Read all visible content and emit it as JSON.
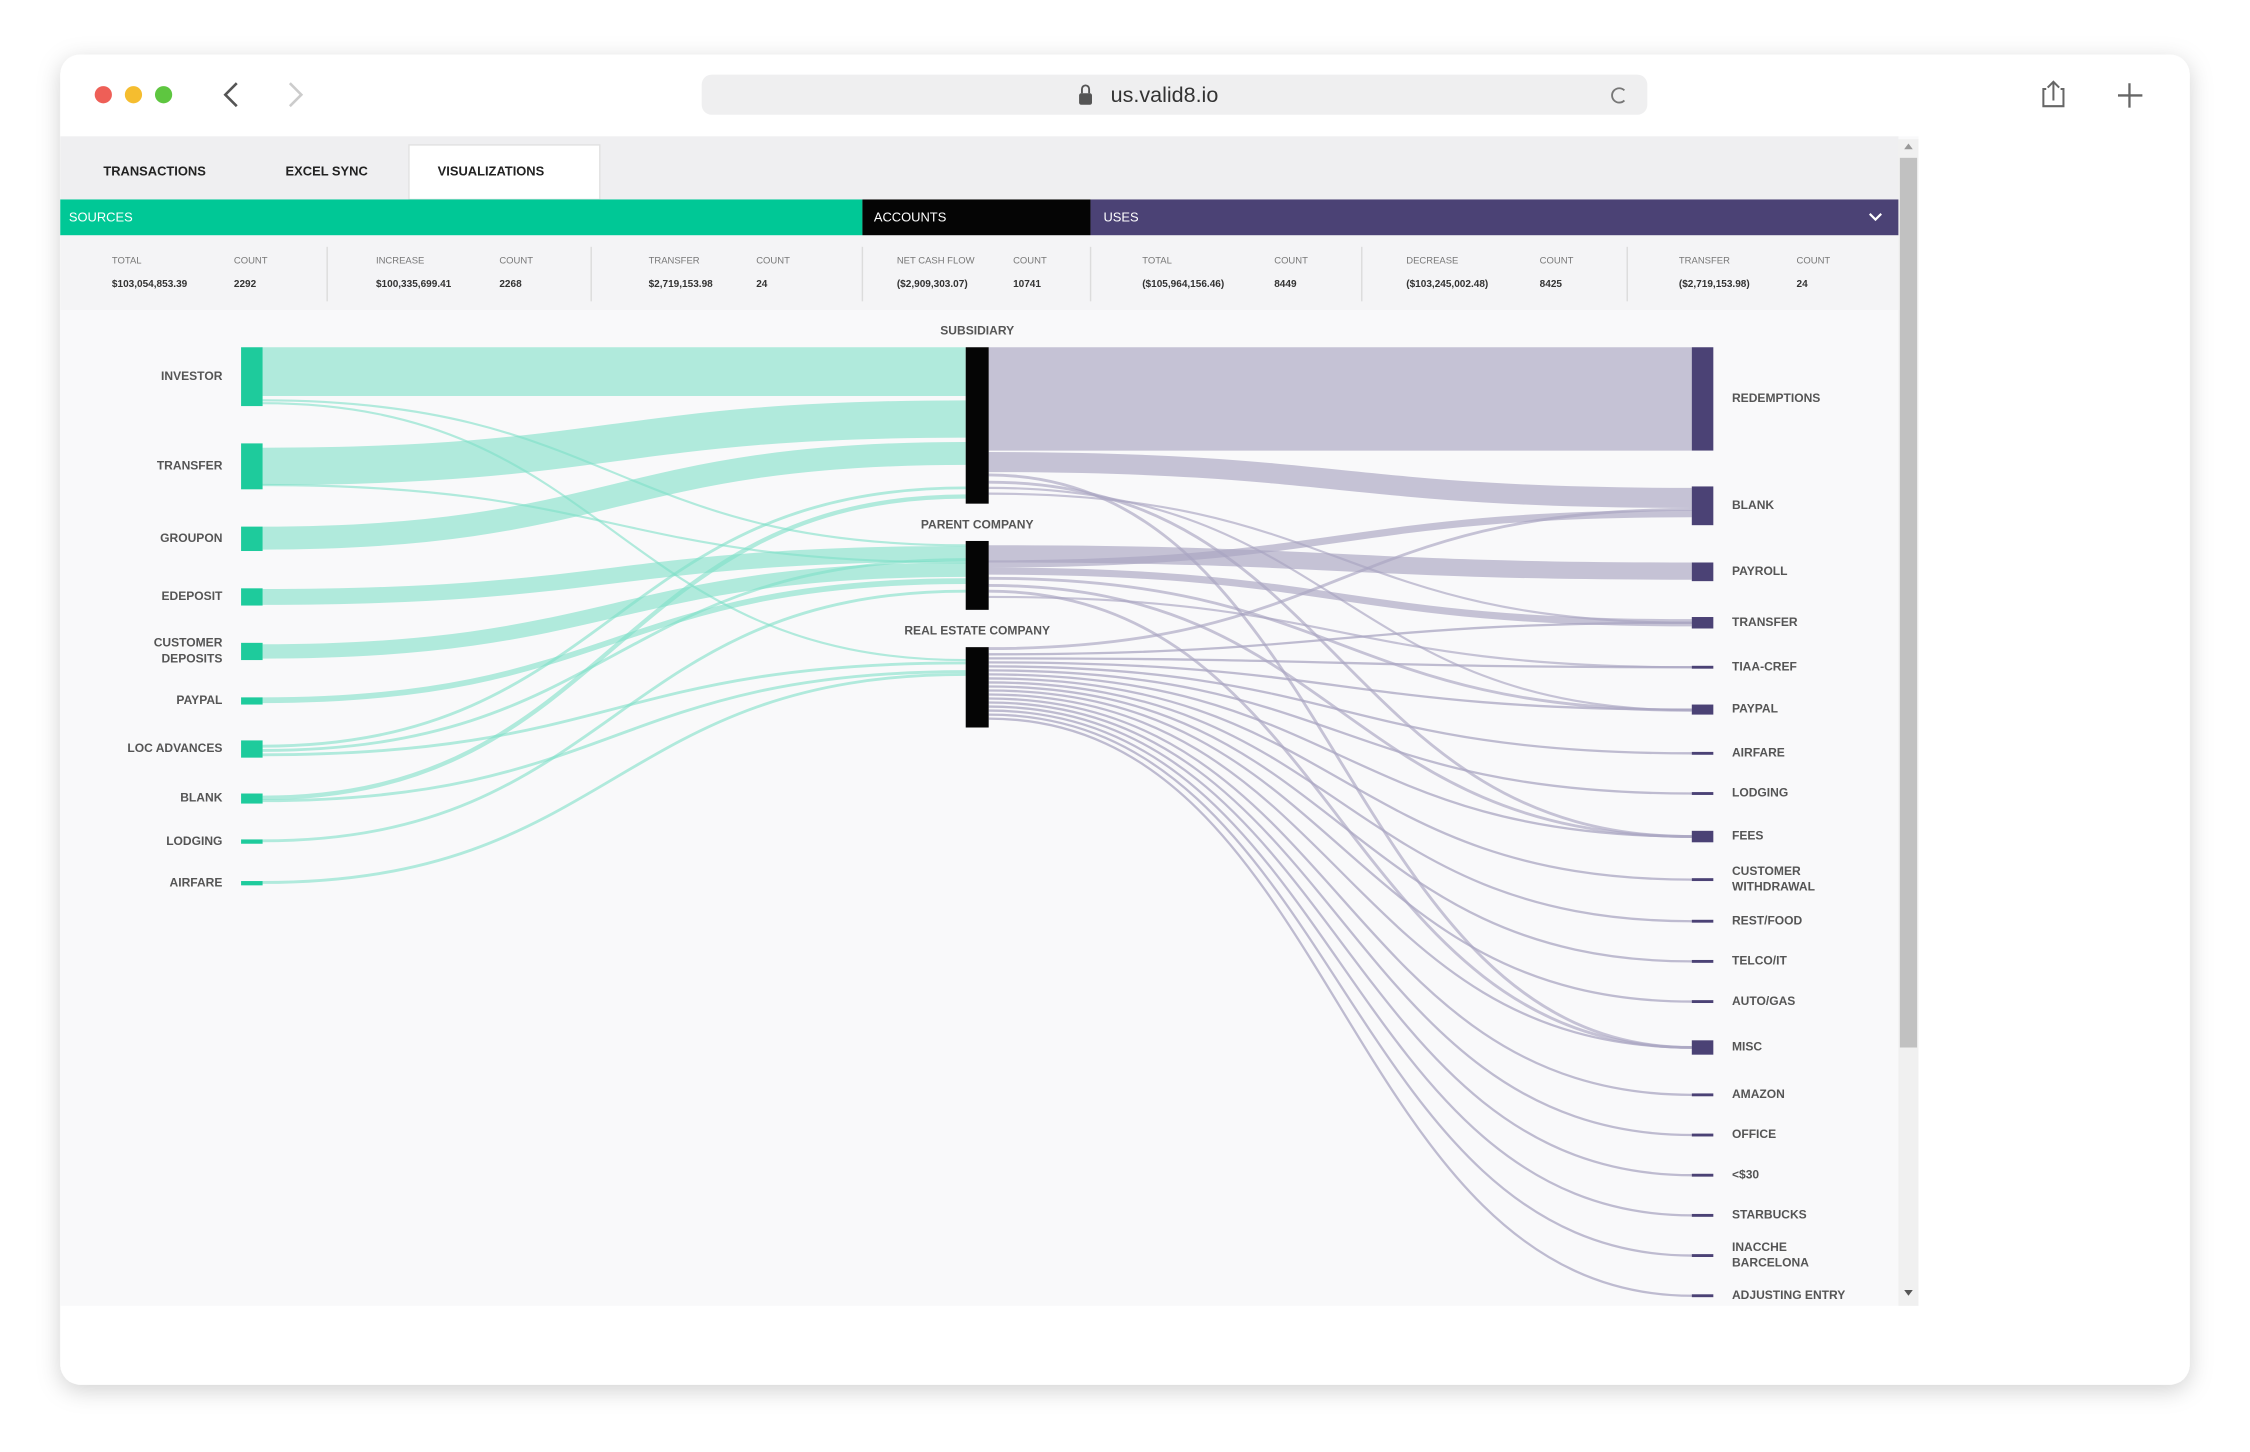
{
  "browser": {
    "url": "us.valid8.io"
  },
  "tabs": [
    "TRANSACTIONS",
    "EXCEL SYNC",
    "VISUALIZATIONS"
  ],
  "sections": {
    "sources": "SOURCES",
    "accounts": "ACCOUNTS",
    "uses": "USES"
  },
  "stats": [
    {
      "label": "TOTAL",
      "value": "$103,054,853.39"
    },
    {
      "label": "COUNT",
      "value": "2292"
    },
    {
      "label": "INCREASE",
      "value": "$100,335,699.41"
    },
    {
      "label": "COUNT",
      "value": "2268"
    },
    {
      "label": "TRANSFER",
      "value": "$2,719,153.98"
    },
    {
      "label": "COUNT",
      "value": "24"
    },
    {
      "label": "NET CASH FLOW",
      "value": "($2,909,303.07)"
    },
    {
      "label": "COUNT",
      "value": "10741"
    },
    {
      "label": "TOTAL",
      "value": "($105,964,156.46)"
    },
    {
      "label": "COUNT",
      "value": "8449"
    },
    {
      "label": "DECREASE",
      "value": "($103,245,002.48)"
    },
    {
      "label": "COUNT",
      "value": "8425"
    },
    {
      "label": "TRANSFER",
      "value": "($2,719,153.98)"
    },
    {
      "label": "COUNT",
      "value": "24"
    }
  ],
  "sankey": {
    "sources": [
      [
        "INVESTOR"
      ],
      [
        "TRANSFER"
      ],
      [
        "GROUPON"
      ],
      [
        "EDEPOSIT"
      ],
      [
        "CUSTOMER",
        "DEPOSITS"
      ],
      [
        "PAYPAL"
      ],
      [
        "LOC ADVANCES"
      ],
      [
        "BLANK"
      ],
      [
        "LODGING"
      ],
      [
        "AIRFARE"
      ]
    ],
    "accounts": [
      "SUBSIDIARY",
      "PARENT COMPANY",
      "REAL ESTATE COMPANY"
    ],
    "uses": [
      [
        "REDEMPTIONS"
      ],
      [
        "BLANK"
      ],
      [
        "PAYROLL"
      ],
      [
        "TRANSFER"
      ],
      [
        "TIAA-CREF"
      ],
      [
        "PAYPAL"
      ],
      [
        "AIRFARE"
      ],
      [
        "LODGING"
      ],
      [
        "FEES"
      ],
      [
        "CUSTOMER",
        "WITHDRAWAL"
      ],
      [
        "REST/FOOD"
      ],
      [
        "TELCO/IT"
      ],
      [
        "AUTO/GAS"
      ],
      [
        "MISC"
      ],
      [
        "AMAZON"
      ],
      [
        "OFFICE"
      ],
      [
        "<$30"
      ],
      [
        "STARBUCKS"
      ],
      [
        "INACCHE",
        "BARCELONA"
      ],
      [
        "ADJUSTING ENTRY"
      ]
    ]
  }
}
